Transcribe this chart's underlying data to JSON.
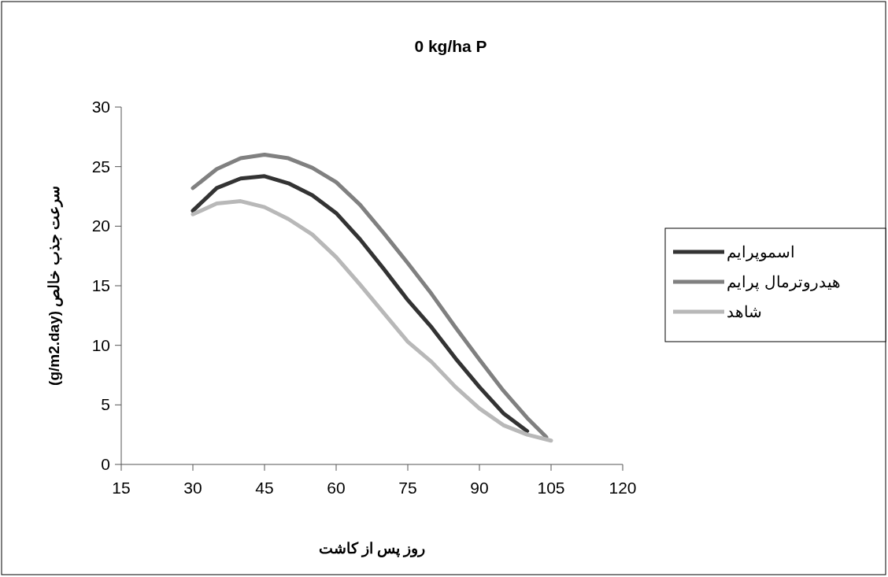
{
  "chart_data": {
    "type": "line",
    "title": "0 kg/ha P",
    "xlabel": "روز پس از کاشت",
    "ylabel": "سرعت جذب خالص (g/m2.day)",
    "x": [
      30,
      35,
      40,
      45,
      50,
      55,
      60,
      65,
      70,
      75,
      80,
      85,
      90,
      95,
      100,
      104
    ],
    "series": [
      {
        "name": "اسموپرایم",
        "color": "#333333",
        "values": [
          21.3,
          23.2,
          24.0,
          24.2,
          23.6,
          22.6,
          21.1,
          18.9,
          16.4,
          13.8,
          11.5,
          8.9,
          6.5,
          4.3,
          2.8,
          null
        ]
      },
      {
        "name": "هیدروترمال پرایم",
        "color": "#808080",
        "values": [
          23.2,
          24.8,
          25.7,
          26.0,
          25.7,
          24.9,
          23.7,
          21.8,
          19.4,
          16.9,
          14.3,
          11.5,
          8.8,
          6.2,
          3.9,
          2.3
        ]
      },
      {
        "name": "شاهد",
        "color": "#b8b8b8",
        "x": [
          30,
          35,
          40,
          45,
          50,
          55,
          60,
          65,
          70,
          75,
          80,
          85,
          90,
          95,
          100,
          105
        ],
        "values": [
          21.0,
          21.9,
          22.1,
          21.6,
          20.6,
          19.3,
          17.4,
          15.1,
          12.7,
          10.3,
          8.6,
          6.5,
          4.7,
          3.3,
          2.5,
          2.0
        ]
      }
    ],
    "xlim": [
      15,
      120
    ],
    "xticks": [
      15,
      30,
      45,
      60,
      75,
      90,
      105,
      120
    ],
    "ylim": [
      0,
      30
    ],
    "yticks": [
      0,
      5,
      10,
      15,
      20,
      25,
      30
    ],
    "grid": false,
    "legend": "right",
    "marker": "none",
    "line_style": "solid"
  }
}
